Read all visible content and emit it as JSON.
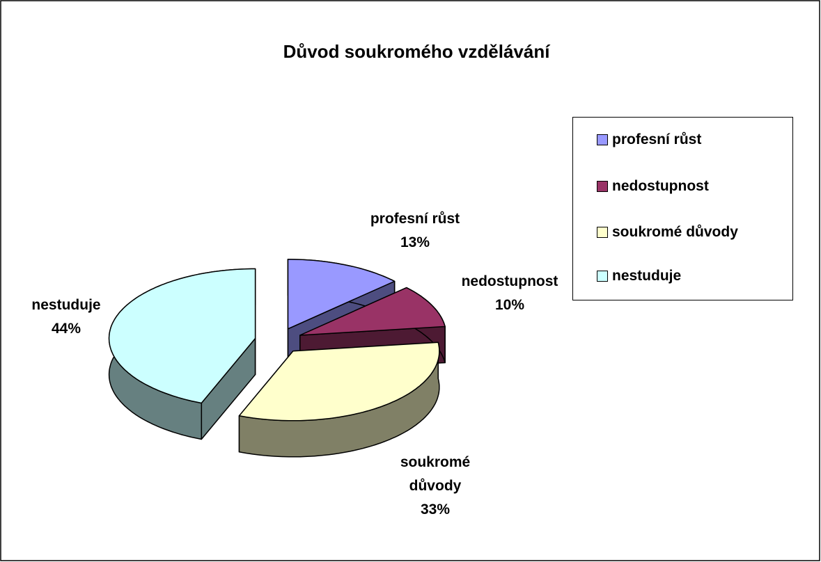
{
  "chart_data": {
    "type": "pie3d",
    "title": "Důvod soukromého vzdělávání",
    "categories": [
      "profesní růst",
      "nedostupnost",
      "soukromé důvody",
      "nestuduje"
    ],
    "values": [
      13,
      10,
      33,
      44
    ],
    "value_labels": [
      "13%",
      "10%",
      "33%",
      "44%"
    ],
    "colors": [
      "#9999ff",
      "#993366",
      "#ffffcc",
      "#ccffff"
    ],
    "legend": "right"
  }
}
